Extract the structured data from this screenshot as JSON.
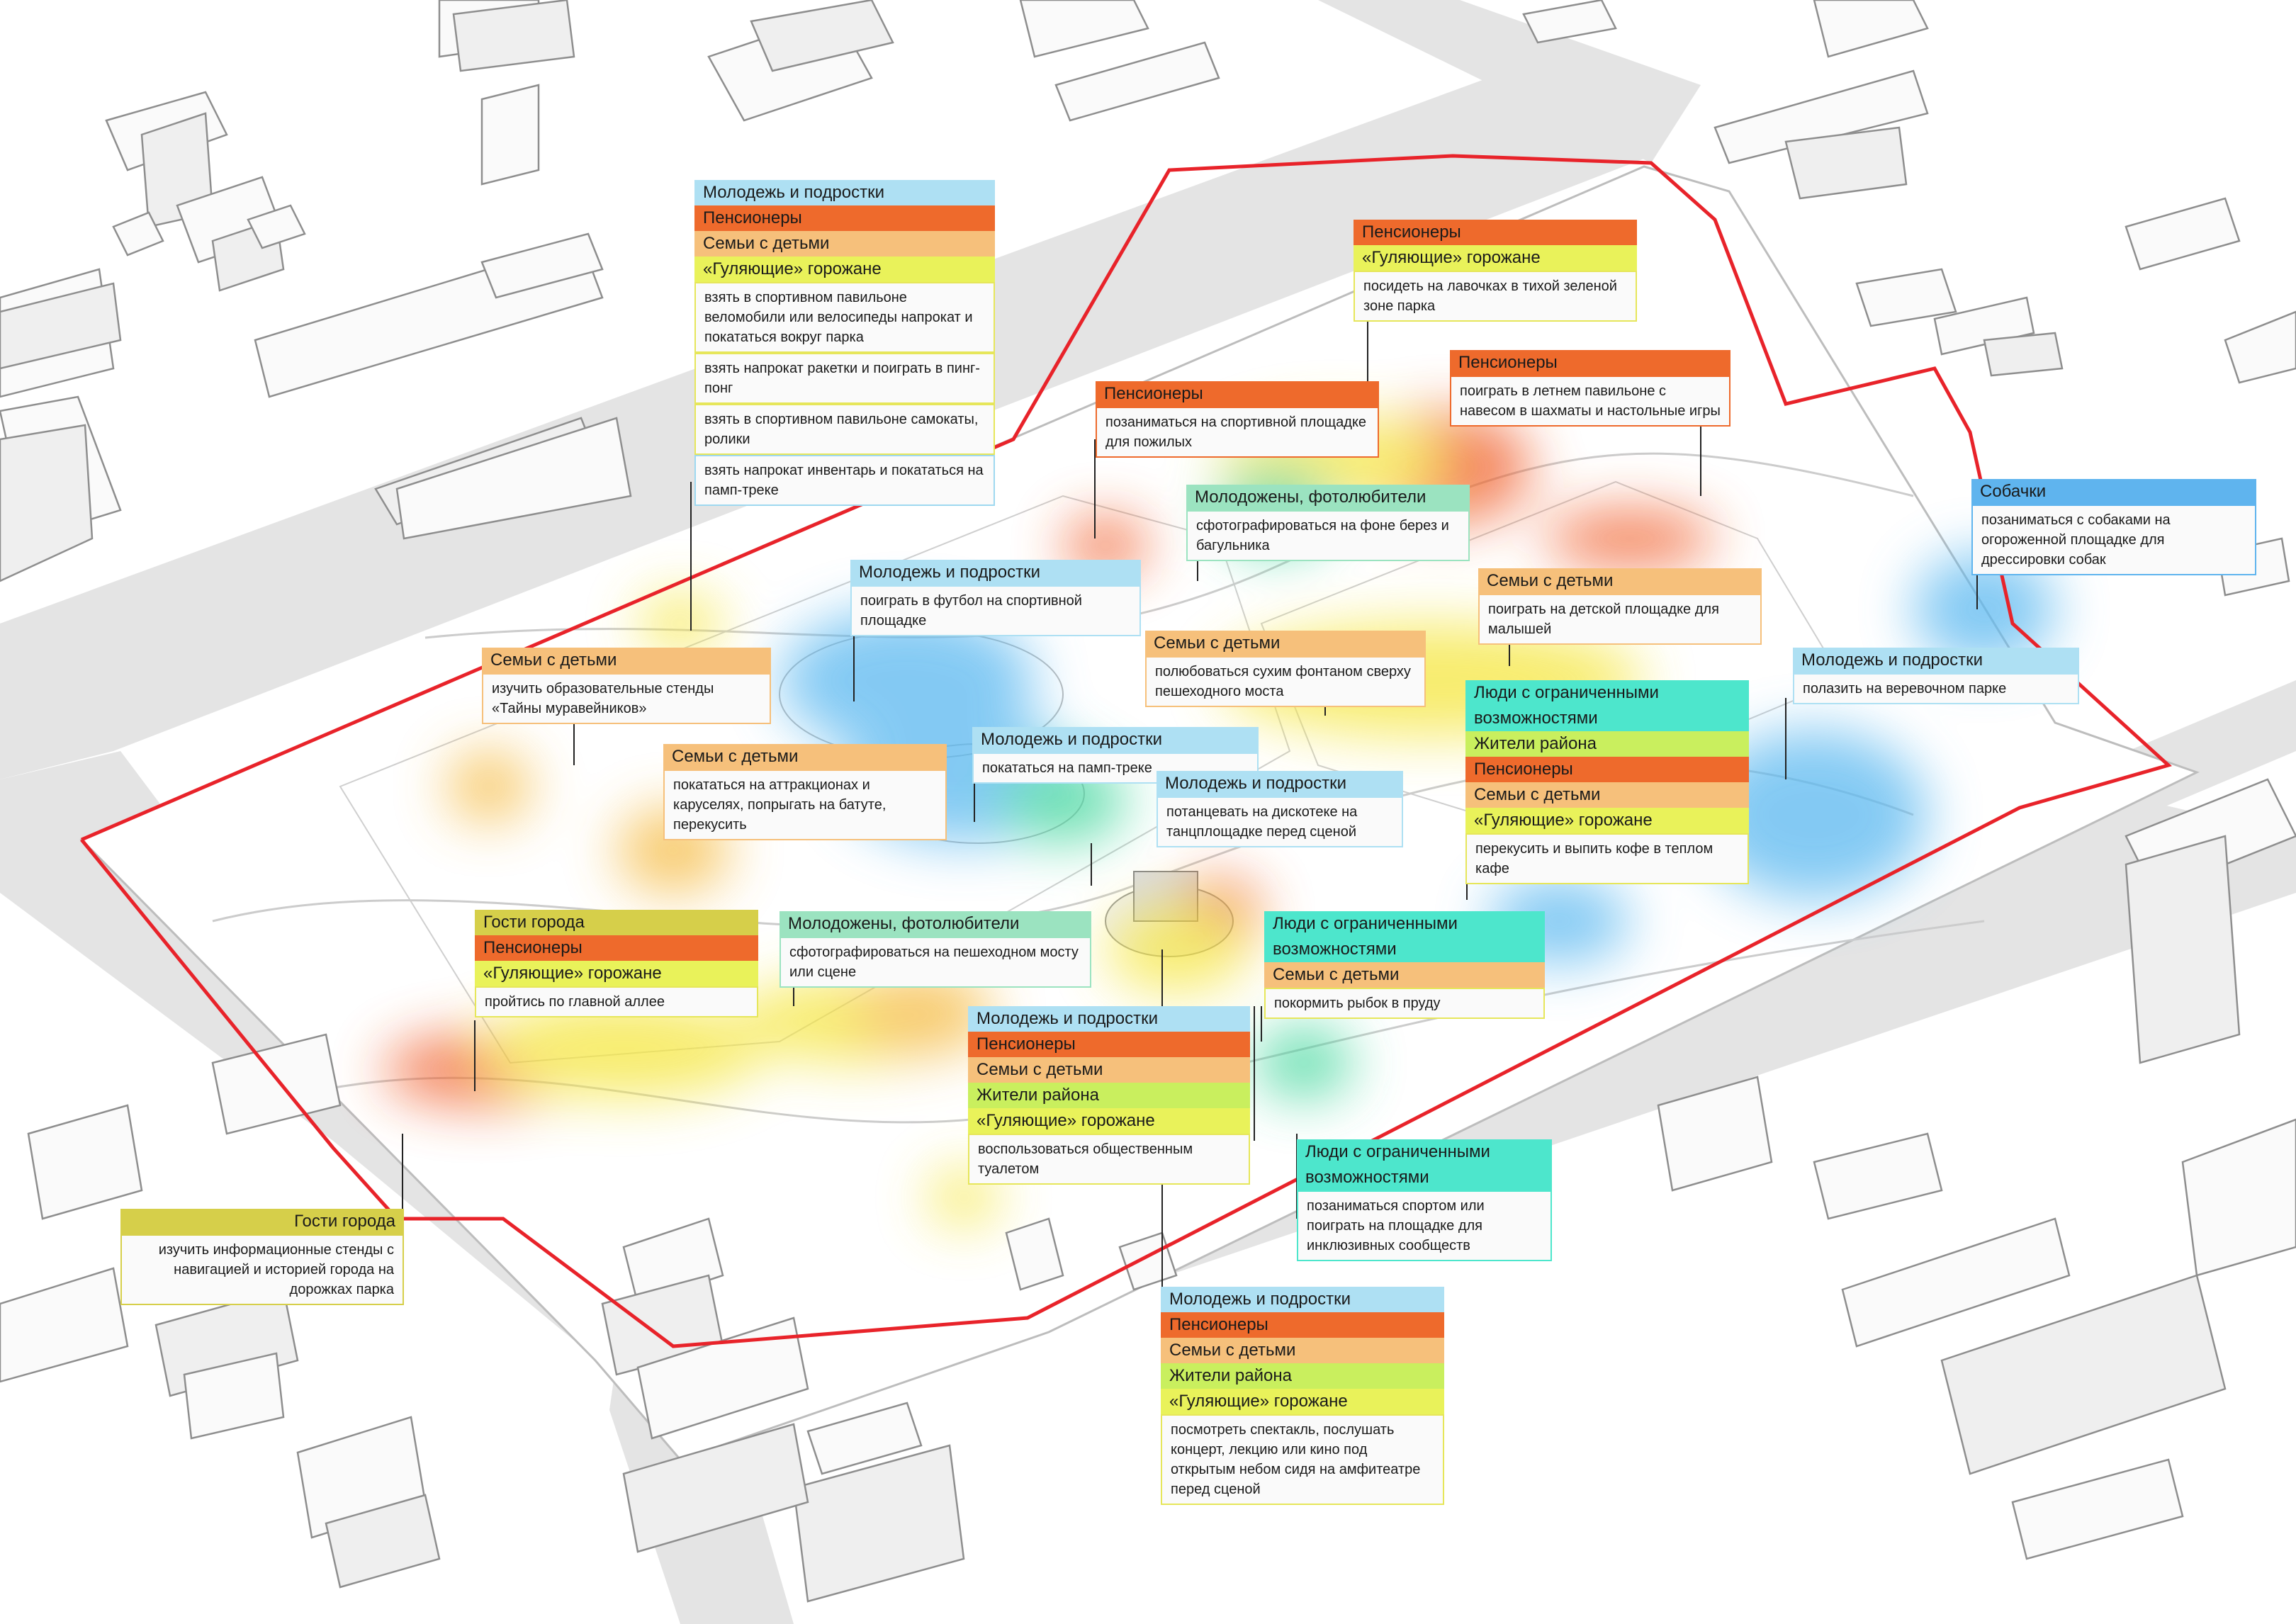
{
  "colors": {
    "youth": "#aee0f3",
    "pensioners": "#ee6a2c",
    "families": "#f6c07b",
    "walkers": "#e9f25a",
    "newlyweds": "#9be3c0",
    "disabled": "#4de6cc",
    "dogs": "#5fb4ee",
    "guests": "#d6cf4a",
    "residents": "#c9ef5e",
    "boundary": "#e8232a"
  },
  "callouts": {
    "c1": {
      "tags": [
        "Молодежь и подростки",
        "Пенсионеры",
        "Семьи с детьми",
        "«Гуляющие» горожане"
      ],
      "activities": [
        "взять в спортивном павильоне веломобили или велосипеды напрокат и покататься вокруг парка",
        "взять напрокат ракетки и поиграть в пинг-понг",
        "взять в спортивном павильоне самокаты, ролики",
        "взять напрокат инвентарь и покататься на памп-треке"
      ]
    },
    "c2": {
      "tags": [
        "Пенсионеры",
        "«Гуляющие» горожане"
      ],
      "desc": "посидеть на лавочках в тихой зеленой зоне парка"
    },
    "c3": {
      "tags": [
        "Пенсионеры"
      ],
      "desc": "поиграть в летнем павильоне с навесом в шахматы и настольные игры"
    },
    "c4": {
      "tags": [
        "Пенсионеры"
      ],
      "desc": "позаниматься на спортивной площадке для пожилых"
    },
    "c5": {
      "tags": [
        "Молодожены, фотолюбители"
      ],
      "desc": "сфотографироваться на фоне берез и багульника"
    },
    "c6": {
      "tags": [
        "Собачки"
      ],
      "desc": "позаниматься с собаками на огороженной площадке для дрессировки собак"
    },
    "c7": {
      "tags": [
        "Молодежь и подростки"
      ],
      "desc": "поиграть в футбол на спортивной площадке"
    },
    "c8": {
      "tags": [
        "Семьи с детьми"
      ],
      "desc": "поиграть на детской площадке для малышей"
    },
    "c9": {
      "tags": [
        "Семьи с детьми"
      ],
      "desc": "полюбоваться сухим фонтаном сверху пешеходного моста"
    },
    "c10": {
      "tags": [
        "Семьи с детьми"
      ],
      "desc": "изучить образовательные стенды «Тайны муравейников»"
    },
    "c11": {
      "tags": [
        "Молодежь и подростки"
      ],
      "desc": "полазить на веревочном парке"
    },
    "c12": {
      "tags": [
        "Люди с ограниченными возможностями",
        "Жители района",
        "Пенсионеры",
        "Семьи с детьми",
        "«Гуляющие» горожане"
      ],
      "desc": "перекусить и выпить кофе в теплом кафе"
    },
    "c13": {
      "tags": [
        "Семьи с детьми"
      ],
      "desc": "покататься на аттракционах и каруселях, попрыгать на батуте, перекусить"
    },
    "c14": {
      "tags": [
        "Молодежь и подростки"
      ],
      "desc": "покататься на памп-треке"
    },
    "c15": {
      "tags": [
        "Молодежь и подростки"
      ],
      "desc": "потанцевать на дискотеке на танцплощадке перед сценой"
    },
    "c16": {
      "tags": [
        "Гости города",
        "Пенсионеры",
        "«Гуляющие» горожане"
      ],
      "desc": "пройтись по главной аллее"
    },
    "c17": {
      "tags": [
        "Молодожены, фотолюбители"
      ],
      "desc": "сфотографироваться на пешеходном мосту или сцене"
    },
    "c18": {
      "tags": [
        "Люди с ограниченными возможностями",
        "Семьи с детьми"
      ],
      "desc": "покормить рыбок в пруду"
    },
    "c19": {
      "tags": [
        "Молодежь и подростки",
        "Пенсионеры",
        "Семьи с детьми",
        "Жители района",
        "«Гуляющие» горожане"
      ],
      "desc": "воспользоваться общественным туалетом"
    },
    "c20": {
      "tags": [
        "Люди с ограниченными возможностями"
      ],
      "desc": "позаниматься спортом или поиграть на площадке для инклюзивных сообществ"
    },
    "c21": {
      "tags": [
        "Гости города"
      ],
      "desc": "изучить информационные стенды с навигацией и историей города на дорожках парка"
    },
    "c22": {
      "tags": [
        "Молодежь и подростки",
        "Пенсионеры",
        "Семьи с детьми",
        "Жители района",
        "«Гуляющие» горожане"
      ],
      "desc": "посмотреть спектакль, послушать концерт, лекцию или кино под открытым небом сидя на амфитеатре перед сценой"
    }
  }
}
